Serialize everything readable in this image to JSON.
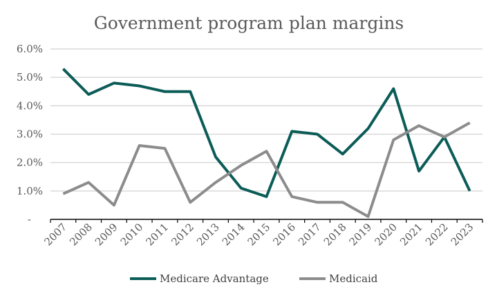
{
  "chart_data": {
    "type": "line",
    "title": "Government program plan margins",
    "xlabel": "",
    "ylabel": "",
    "categories": [
      "2007",
      "2008",
      "2009",
      "2010",
      "2011",
      "2012",
      "2013",
      "2014",
      "2015",
      "2016",
      "2017",
      "2018",
      "2019",
      "2020",
      "2021",
      "2022",
      "2023"
    ],
    "ylim": [
      0,
      0.06
    ],
    "yticks": [
      0,
      0.01,
      0.02,
      0.03,
      0.04,
      0.05,
      0.06
    ],
    "ytick_labels": [
      "-",
      "1.0%",
      "2.0%",
      "3.0%",
      "4.0%",
      "5.0%",
      "6.0%"
    ],
    "grid": true,
    "legend_position": "bottom",
    "series": [
      {
        "name": "Medicare Advantage",
        "color": "#0b5c57",
        "values": [
          0.053,
          0.044,
          0.048,
          0.047,
          0.045,
          0.045,
          0.022,
          0.011,
          0.008,
          0.031,
          0.03,
          0.023,
          0.032,
          0.046,
          0.017,
          0.029,
          0.01
        ]
      },
      {
        "name": "Medicaid",
        "color": "#8c8c8c",
        "values": [
          0.009,
          0.013,
          0.005,
          0.026,
          0.025,
          0.006,
          0.013,
          0.019,
          0.024,
          0.008,
          0.006,
          0.006,
          0.001,
          0.028,
          0.033,
          0.029,
          0.034
        ]
      }
    ]
  }
}
